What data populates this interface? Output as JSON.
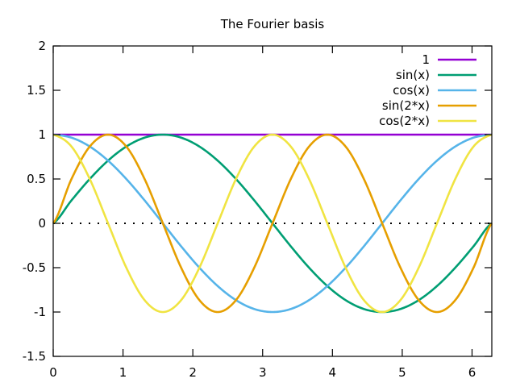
{
  "chart_data": {
    "type": "line",
    "title": "The Fourier basis",
    "xlabel": "",
    "ylabel": "",
    "xlim": [
      0,
      6.283185
    ],
    "ylim": [
      -1.5,
      2
    ],
    "xticks": [
      0,
      1,
      2,
      3,
      4,
      5,
      6
    ],
    "xtick_labels": [
      "0",
      "1",
      "2",
      "3",
      "4",
      "5",
      "6"
    ],
    "yticks": [
      -1.5,
      -1,
      -0.5,
      0,
      0.5,
      1,
      1.5,
      2
    ],
    "ytick_labels": [
      "-1.5",
      "-1",
      "-0.5",
      "0",
      "0.5",
      "1",
      "1.5",
      "2"
    ],
    "grid": false,
    "legend_position": "top-right",
    "zero_line": {
      "y": 0,
      "style": "dotted"
    },
    "x": [
      0,
      0.2618,
      0.5236,
      0.7854,
      1.0472,
      1.309,
      1.5708,
      1.8326,
      2.0944,
      2.3562,
      2.618,
      2.8798,
      3.1416,
      3.4034,
      3.6652,
      3.927,
      4.1888,
      4.4506,
      4.7124,
      4.9742,
      5.236,
      5.4978,
      5.7596,
      6.0214,
      6.2832
    ],
    "series": [
      {
        "name": "1",
        "color": "#9400d3",
        "values": [
          1,
          1,
          1,
          1,
          1,
          1,
          1,
          1,
          1,
          1,
          1,
          1,
          1,
          1,
          1,
          1,
          1,
          1,
          1,
          1,
          1,
          1,
          1,
          1,
          1
        ]
      },
      {
        "name": "sin(x)",
        "color": "#009e73",
        "values": [
          0,
          0.259,
          0.5,
          0.707,
          0.866,
          0.966,
          1,
          0.966,
          0.866,
          0.707,
          0.5,
          0.259,
          0,
          -0.259,
          -0.5,
          -0.707,
          -0.866,
          -0.966,
          -1,
          -0.966,
          -0.866,
          -0.707,
          -0.5,
          -0.259,
          0
        ]
      },
      {
        "name": "cos(x)",
        "color": "#56b4e9",
        "values": [
          1,
          0.966,
          0.866,
          0.707,
          0.5,
          0.259,
          0,
          -0.259,
          -0.5,
          -0.707,
          -0.866,
          -0.966,
          -1,
          -0.966,
          -0.866,
          -0.707,
          -0.5,
          -0.259,
          0,
          0.259,
          0.5,
          0.707,
          0.866,
          0.966,
          1
        ]
      },
      {
        "name": "sin(2*x)",
        "color": "#e69f00",
        "values": [
          0,
          0.5,
          0.866,
          1,
          0.866,
          0.5,
          0,
          -0.5,
          -0.866,
          -1,
          -0.866,
          -0.5,
          0,
          0.5,
          0.866,
          1,
          0.866,
          0.5,
          0,
          -0.5,
          -0.866,
          -1,
          -0.866,
          -0.5,
          0
        ]
      },
      {
        "name": "cos(2*x)",
        "color": "#f0e442",
        "values": [
          1,
          0.866,
          0.5,
          0,
          -0.5,
          -0.866,
          -1,
          -0.866,
          -0.5,
          0,
          0.5,
          0.866,
          1,
          0.866,
          0.5,
          0,
          -0.5,
          -0.866,
          -1,
          -0.866,
          -0.5,
          0,
          0.5,
          0.866,
          1
        ]
      }
    ]
  }
}
